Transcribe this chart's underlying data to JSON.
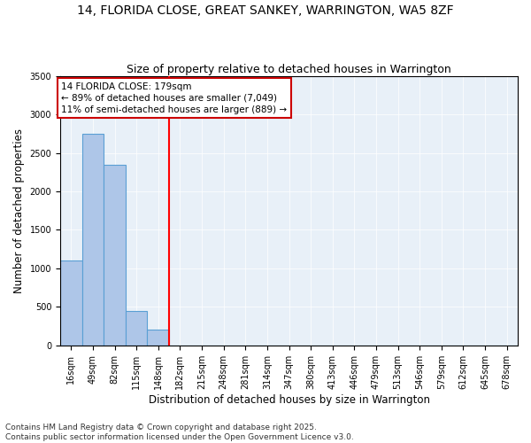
{
  "title": "14, FLORIDA CLOSE, GREAT SANKEY, WARRINGTON, WA5 8ZF",
  "subtitle": "Size of property relative to detached houses in Warrington",
  "xlabel": "Distribution of detached houses by size in Warrington",
  "ylabel": "Number of detached properties",
  "bin_labels": [
    "16sqm",
    "49sqm",
    "82sqm",
    "115sqm",
    "148sqm",
    "182sqm",
    "215sqm",
    "248sqm",
    "281sqm",
    "314sqm",
    "347sqm",
    "380sqm",
    "413sqm",
    "446sqm",
    "479sqm",
    "513sqm",
    "546sqm",
    "579sqm",
    "612sqm",
    "645sqm",
    "678sqm"
  ],
  "bar_heights": [
    1100,
    2750,
    2350,
    450,
    200,
    0,
    0,
    0,
    0,
    0,
    0,
    0,
    0,
    0,
    0,
    0,
    0,
    0,
    0,
    0,
    0
  ],
  "bar_color": "#aec6e8",
  "bar_edge_color": "#5a9fd4",
  "red_line_index": 5,
  "property_label": "14 FLORIDA CLOSE: 179sqm",
  "annotation_line1": "← 89% of detached houses are smaller (7,049)",
  "annotation_line2": "11% of semi-detached houses are larger (889) →",
  "annotation_box_color": "#ffffff",
  "annotation_border_color": "#cc0000",
  "ylim": [
    0,
    3500
  ],
  "yticks": [
    0,
    500,
    1000,
    1500,
    2000,
    2500,
    3000,
    3500
  ],
  "footnote1": "Contains HM Land Registry data © Crown copyright and database right 2025.",
  "footnote2": "Contains public sector information licensed under the Open Government Licence v3.0.",
  "title_fontsize": 10,
  "subtitle_fontsize": 9,
  "axis_label_fontsize": 8.5,
  "tick_fontsize": 7,
  "annotation_fontsize": 7.5,
  "footnote_fontsize": 6.5,
  "bg_color": "#e8f0f8"
}
